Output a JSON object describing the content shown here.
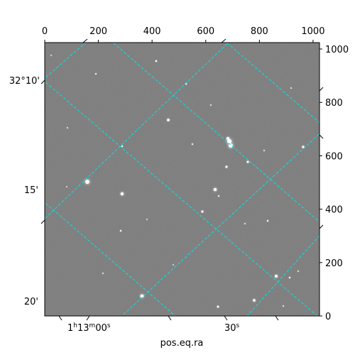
{
  "image_title": "",
  "pixel_axes": {
    "x_ticks": [
      "0",
      "200",
      "400",
      "600",
      "800",
      "1000"
    ],
    "x_values": [
      0,
      200,
      400,
      600,
      800,
      1000
    ],
    "y_ticks": [
      "0",
      "200",
      "400",
      "600",
      "800",
      "1000"
    ],
    "y_values": [
      0,
      200,
      400,
      600,
      800,
      1000
    ],
    "x_range": [
      0,
      1024
    ],
    "y_range": [
      0,
      1024
    ]
  },
  "world_axes": {
    "dec_labels": [
      "32°10'",
      "15'",
      "20'"
    ],
    "ra_labels": [
      "1h13m00s",
      "30s"
    ],
    "ra_label_parts": [
      {
        "main": "1",
        "sup1": "h",
        "mid": "13",
        "sup2": "m",
        "rest": "00",
        "sup3": "s"
      },
      {
        "main": "30",
        "sup3": "s"
      }
    ],
    "xlabel": "pos.eq.ra"
  },
  "colors": {
    "background": "#777777",
    "grid": "#00e5e5",
    "stars": "#ffffff"
  }
}
